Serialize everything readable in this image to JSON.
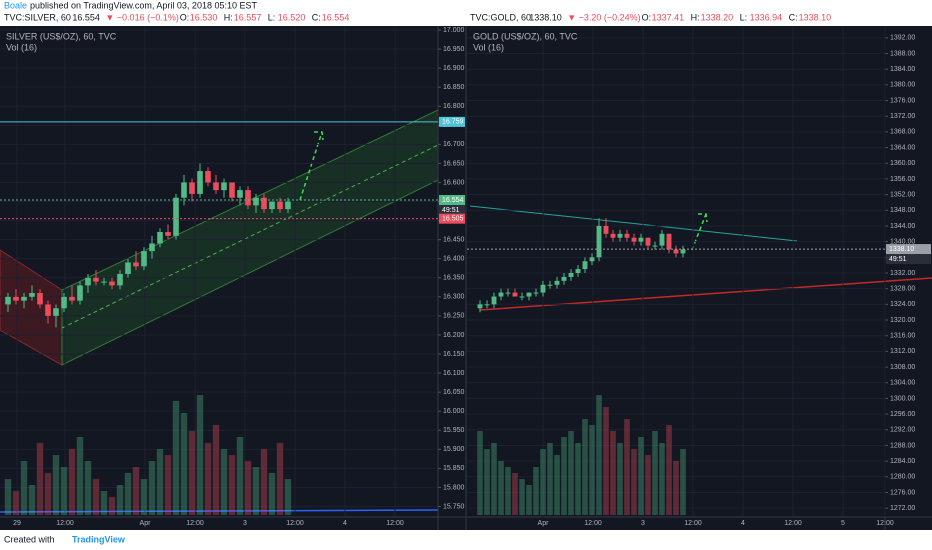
{
  "header": {
    "author": "Boale",
    "published": "published on TradingView.com, April 03, 2018 05:10 EST"
  },
  "footer": {
    "text": "Created with",
    "brand": "TradingView"
  },
  "chart_data": [
    {
      "type": "candlestick",
      "symbol": "TVC:SILVER, 60",
      "last": "16.554",
      "change": "▼ −0.016 (−0.1%)",
      "quote": [
        {
          "label": "O:",
          "value": "16.530"
        },
        {
          "label": "H:",
          "value": "16.557"
        },
        {
          "label": "L:",
          "value": "16.520"
        },
        {
          "label": "C:",
          "value": "16.554"
        }
      ],
      "title": "SILVER (US$/OZ), 60, TVC",
      "indicator": "Vol (16)",
      "up_color": "#53b987",
      "down_color": "#eb4d5c",
      "ylim": [
        15.725,
        17.0
      ],
      "yticks": [
        {
          "value": 15.75,
          "label": "15.750"
        },
        {
          "value": 15.8,
          "label": "15.800"
        },
        {
          "value": 15.85,
          "label": "15.850"
        },
        {
          "value": 15.9,
          "label": "15.900"
        },
        {
          "value": 15.95,
          "label": "15.950"
        },
        {
          "value": 16.0,
          "label": "16.000"
        },
        {
          "value": 16.05,
          "label": "16.050"
        },
        {
          "value": 16.1,
          "label": "16.100"
        },
        {
          "value": 16.15,
          "label": "16.150"
        },
        {
          "value": 16.2,
          "label": "16.200"
        },
        {
          "value": 16.25,
          "label": "16.250"
        },
        {
          "value": 16.3,
          "label": "16.300"
        },
        {
          "value": 16.35,
          "label": "16.350"
        },
        {
          "value": 16.4,
          "label": "16.400"
        },
        {
          "value": 16.45,
          "label": "16.450"
        },
        {
          "value": 16.5,
          "label": "16.500"
        },
        {
          "value": 16.55,
          "label": "16.550"
        },
        {
          "value": 16.6,
          "label": "16.600"
        },
        {
          "value": 16.65,
          "label": "16.650"
        },
        {
          "value": 16.7,
          "label": "16.700"
        },
        {
          "value": 16.75,
          "label": "16.750"
        },
        {
          "value": 16.8,
          "label": "16.800"
        },
        {
          "value": 16.85,
          "label": "16.850"
        },
        {
          "value": 16.9,
          "label": "16.900"
        },
        {
          "value": 16.95,
          "label": "16.950"
        },
        {
          "value": 17.0,
          "label": "17.000"
        }
      ],
      "xtick_labels": [
        "29",
        "12:00",
        "Apr",
        "12:00",
        "3",
        "12:00",
        "4",
        "12:00"
      ],
      "open": [
        16.28,
        16.3,
        16.29,
        16.3,
        16.31,
        16.28,
        16.25,
        16.27,
        16.3,
        16.29,
        16.33,
        16.35,
        16.34,
        16.34,
        16.33,
        16.36,
        16.39,
        16.38,
        16.42,
        16.44,
        16.47,
        16.46,
        16.56,
        16.6,
        16.57,
        16.63,
        16.6,
        16.58,
        16.6,
        16.56,
        16.58,
        16.54,
        16.56,
        16.53,
        16.55,
        16.53
      ],
      "high": [
        16.31,
        16.32,
        16.31,
        16.33,
        16.32,
        16.29,
        16.28,
        16.31,
        16.33,
        16.34,
        16.36,
        16.37,
        16.35,
        16.35,
        16.37,
        16.4,
        16.42,
        16.43,
        16.46,
        16.48,
        16.49,
        16.57,
        16.62,
        16.61,
        16.65,
        16.64,
        16.62,
        16.61,
        16.6,
        16.59,
        16.59,
        16.57,
        16.57,
        16.55,
        16.56,
        16.56
      ],
      "low": [
        16.26,
        16.28,
        16.27,
        16.29,
        16.27,
        16.23,
        16.22,
        16.26,
        16.28,
        16.28,
        16.31,
        16.33,
        16.33,
        16.32,
        16.32,
        16.35,
        16.37,
        16.37,
        16.4,
        16.43,
        16.45,
        16.45,
        16.54,
        16.55,
        16.56,
        16.59,
        16.57,
        16.56,
        16.55,
        16.54,
        16.53,
        16.52,
        16.52,
        16.52,
        16.52,
        16.52
      ],
      "close": [
        16.3,
        16.29,
        16.3,
        16.31,
        16.28,
        16.25,
        16.27,
        16.3,
        16.29,
        16.33,
        16.35,
        16.34,
        16.34,
        16.33,
        16.36,
        16.39,
        16.38,
        16.42,
        16.44,
        16.47,
        16.46,
        16.56,
        16.6,
        16.57,
        16.63,
        16.6,
        16.58,
        16.6,
        16.56,
        16.58,
        16.54,
        16.56,
        16.53,
        16.55,
        16.53,
        16.55
      ],
      "volume": [
        30,
        20,
        45,
        25,
        60,
        35,
        50,
        40,
        55,
        65,
        45,
        30,
        20,
        15,
        25,
        35,
        40,
        30,
        45,
        55,
        50,
        95,
        85,
        70,
        100,
        60,
        75,
        55,
        50,
        65,
        45,
        40,
        55,
        35,
        60,
        30
      ],
      "price_lines": [
        {
          "value": 16.759,
          "color": "#4fc3d8"
        },
        {
          "value": 16.554,
          "color": "#53b987"
        },
        {
          "value": 16.505,
          "color": "#eb4d5c"
        }
      ],
      "countdown": "49:51"
    },
    {
      "type": "candlestick",
      "symbol": "TVC:GOLD, 60",
      "last": "1338.10",
      "change": "▼ −3.20 (−0.24%)",
      "quote": [
        {
          "label": "O:",
          "value": "1337.41"
        },
        {
          "label": "H:",
          "value": "1338.20"
        },
        {
          "label": "L:",
          "value": "1336.94"
        },
        {
          "label": "C:",
          "value": "1338.10"
        }
      ],
      "title": "GOLD (US$/OZ), 60, TVC",
      "indicator": "Vol (16)",
      "up_color": "#53b987",
      "down_color": "#eb4d5c",
      "ylim": [
        1270,
        1394
      ],
      "yticks": [
        {
          "value": 1272,
          "label": "1272.00"
        },
        {
          "value": 1276,
          "label": "1276.00"
        },
        {
          "value": 1280,
          "label": "1280.00"
        },
        {
          "value": 1284,
          "label": "1284.00"
        },
        {
          "value": 1288,
          "label": "1288.00"
        },
        {
          "value": 1292,
          "label": "1292.00"
        },
        {
          "value": 1296,
          "label": "1296.00"
        },
        {
          "value": 1300,
          "label": "1300.00"
        },
        {
          "value": 1304,
          "label": "1304.00"
        },
        {
          "value": 1308,
          "label": "1308.00"
        },
        {
          "value": 1312,
          "label": "1312.00"
        },
        {
          "value": 1316,
          "label": "1316.00"
        },
        {
          "value": 1320,
          "label": "1320.00"
        },
        {
          "value": 1324,
          "label": "1324.00"
        },
        {
          "value": 1328,
          "label": "1328.00"
        },
        {
          "value": 1332,
          "label": "1332.00"
        },
        {
          "value": 1336,
          "label": "1336.00"
        },
        {
          "value": 1340,
          "label": "1340.00"
        },
        {
          "value": 1344,
          "label": "1344.00"
        },
        {
          "value": 1348,
          "label": "1348.00"
        },
        {
          "value": 1352,
          "label": "1352.00"
        },
        {
          "value": 1356,
          "label": "1356.00"
        },
        {
          "value": 1360,
          "label": "1360.00"
        },
        {
          "value": 1364,
          "label": "1364.00"
        },
        {
          "value": 1368,
          "label": "1368.00"
        },
        {
          "value": 1372,
          "label": "1372.00"
        },
        {
          "value": 1376,
          "label": "1376.00"
        },
        {
          "value": 1380,
          "label": "1380.00"
        },
        {
          "value": 1384,
          "label": "1384.00"
        },
        {
          "value": 1388,
          "label": "1388.00"
        },
        {
          "value": 1392,
          "label": "1392.00"
        }
      ],
      "xtick_labels": [
        "Apr",
        "12:00",
        "3",
        "12:00",
        "4",
        "12:00",
        "5",
        "12:00"
      ],
      "open": [
        1323,
        1324,
        1324,
        1326,
        1327,
        1327,
        1326,
        1326,
        1327,
        1327,
        1329,
        1329,
        1330,
        1331,
        1332,
        1333,
        1335,
        1336,
        1344,
        1342,
        1341,
        1342,
        1341,
        1340,
        1341,
        1339,
        1339,
        1342,
        1338,
        1337
      ],
      "high": [
        1325,
        1325,
        1327,
        1328,
        1328,
        1328,
        1327,
        1327,
        1328,
        1330,
        1330,
        1331,
        1332,
        1333,
        1334,
        1336,
        1337,
        1346,
        1346,
        1343,
        1343,
        1343,
        1342,
        1342,
        1341,
        1340,
        1343,
        1342,
        1339,
        1339
      ],
      "low": [
        1322,
        1323,
        1323,
        1325,
        1326,
        1326,
        1325,
        1325,
        1326,
        1326,
        1328,
        1328,
        1329,
        1330,
        1331,
        1332,
        1334,
        1335,
        1341,
        1340,
        1340,
        1340,
        1339,
        1339,
        1338,
        1338,
        1338,
        1337,
        1336,
        1336
      ],
      "close": [
        1324,
        1324,
        1326,
        1327,
        1327,
        1326,
        1326,
        1327,
        1327,
        1329,
        1329,
        1330,
        1331,
        1332,
        1333,
        1335,
        1336,
        1344,
        1342,
        1341,
        1342,
        1341,
        1340,
        1341,
        1339,
        1339,
        1342,
        1338,
        1337,
        1338
      ],
      "volume": [
        70,
        55,
        60,
        45,
        40,
        35,
        30,
        25,
        40,
        55,
        60,
        50,
        65,
        70,
        60,
        80,
        75,
        100,
        90,
        70,
        60,
        80,
        55,
        65,
        50,
        70,
        60,
        75,
        45,
        55
      ],
      "price_lines": [
        {
          "value": 1338.1,
          "label": "1338.10",
          "color": "#9aa0a6"
        }
      ],
      "countdown": "49:51"
    }
  ]
}
